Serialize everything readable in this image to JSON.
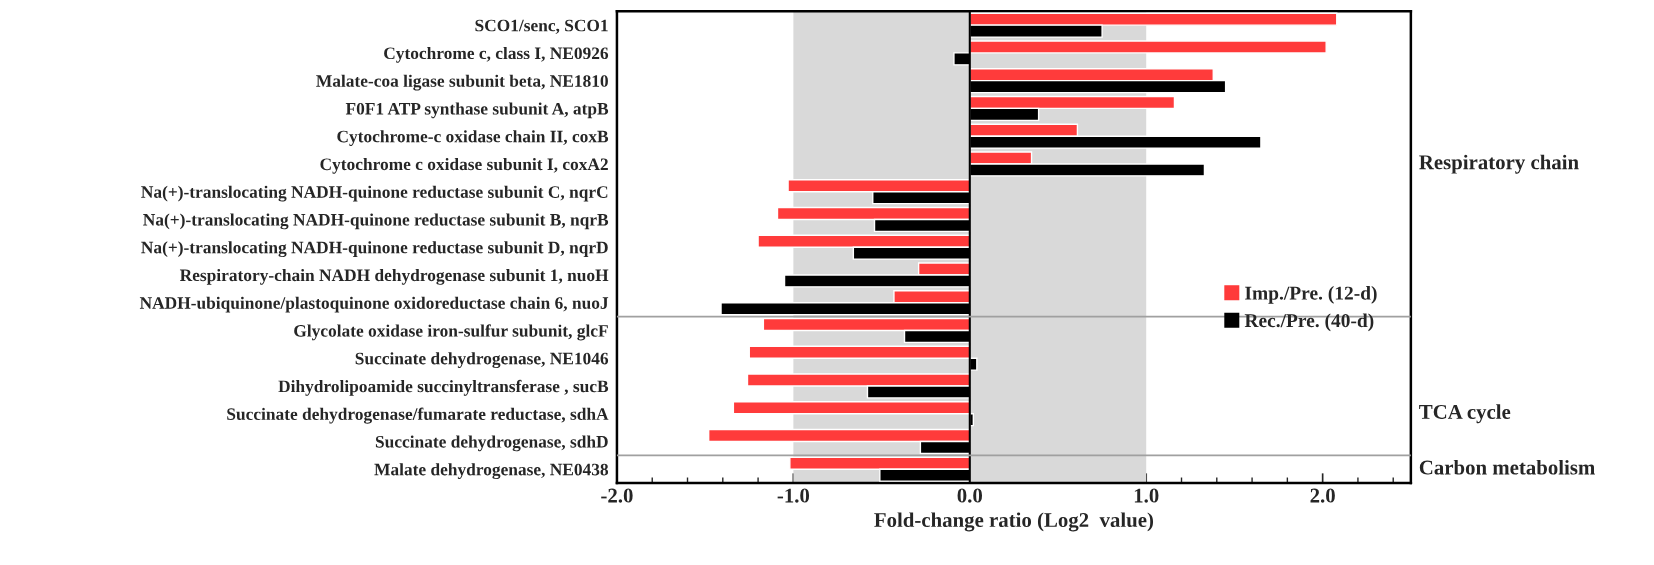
{
  "chart_data": {
    "type": "bar",
    "orientation": "horizontal",
    "xlabel": "Fold-change ratio (Log2  value)",
    "categories": [
      "SCO1/senc, SCO1",
      "Cytochrome c, class I, NE0926",
      "Malate-coa ligase subunit beta, NE1810",
      "F0F1 ATP synthase subunit A, atpB",
      "Cytochrome-c oxidase chain II, coxB",
      "Cytochrome c oxidase subunit I, coxA2",
      "Na(+)-translocating NADH-quinone reductase subunit C, nqrC",
      "Na(+)-translocating NADH-quinone reductase subunit B, nqrB",
      "Na(+)-translocating NADH-quinone reductase subunit D, nqrD",
      "Respiratory-chain NADH dehydrogenase subunit 1, nuoH",
      "NADH-ubiquinone/plastoquinone oxidoreductase chain 6, nuoJ",
      "Glycolate oxidase iron-sulfur subunit, glcF",
      "Succinate dehydrogenase, NE1046",
      "Dihydrolipoamide succinyltransferase , sucB",
      "Succinate dehydrogenase/fumarate reductase, sdhA",
      "Succinate dehydrogenase, sdhD",
      "Malate dehydrogenase, NE0438"
    ],
    "series": [
      {
        "name": "Imp./Pre. (12-d)",
        "color": "#ff3b3b",
        "values": [
          2.08,
          2.02,
          1.38,
          1.16,
          0.61,
          0.35,
          -1.03,
          -1.09,
          -1.2,
          -0.29,
          -0.43,
          -1.17,
          -1.25,
          -1.26,
          -1.34,
          -1.48,
          -1.02
        ]
      },
      {
        "name": "Rec./Pre. (40-d)",
        "color": "#000000",
        "values": [
          0.75,
          -0.09,
          1.45,
          0.39,
          1.65,
          1.33,
          -0.55,
          -0.54,
          -0.66,
          -1.05,
          -1.41,
          -0.37,
          0.04,
          -0.58,
          0.02,
          -0.28,
          -0.51
        ]
      }
    ],
    "xlim": [
      -2.0,
      2.5
    ],
    "xticks": [
      {
        "value": -2,
        "label": "-2.0"
      },
      {
        "value": -1,
        "label": "-1.0"
      },
      {
        "value": 0,
        "label": "0.0"
      },
      {
        "value": 1,
        "label": "1.0"
      },
      {
        "value": 2,
        "label": "2.0"
      }
    ],
    "bands": [
      {
        "axis": "x",
        "from": -1,
        "to": 1,
        "color": "#d9d9d9"
      }
    ],
    "ref_lines": [
      {
        "axis": "x",
        "value": 0,
        "color": "#000000"
      }
    ],
    "annotations": [
      "Respiratory chain",
      "TCA cycle",
      "Carbon metabolism"
    ],
    "legend": "right",
    "grid": false
  }
}
